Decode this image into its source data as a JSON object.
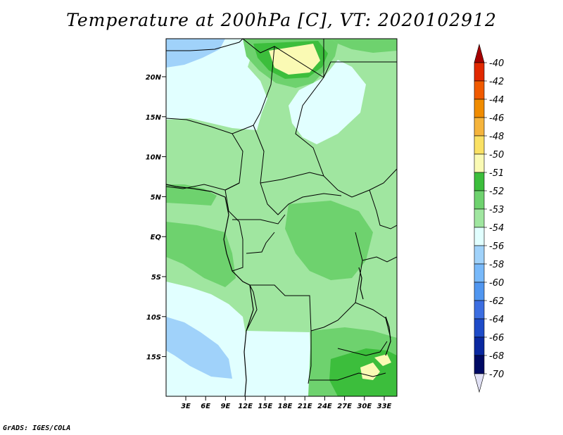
{
  "title": "Temperature at 200hPa [C], VT: 2020102912",
  "credit": "GrADS: IGES/COLA",
  "map": {
    "lat_ticks": [
      "20N",
      "15N",
      "10N",
      "5N",
      "EQ",
      "5S",
      "10S",
      "15S"
    ],
    "lon_ticks": [
      "3E",
      "6E",
      "9E",
      "12E",
      "15E",
      "18E",
      "21E",
      "24E",
      "27E",
      "30E",
      "33E"
    ]
  },
  "colorbar": {
    "labels": [
      "-40",
      "-42",
      "-44",
      "-46",
      "-48",
      "-50",
      "-51",
      "-52",
      "-53",
      "-54",
      "-56",
      "-58",
      "-60",
      "-62",
      "-64",
      "-66",
      "-68",
      "-70"
    ],
    "colors": [
      "#a50000",
      "#e12800",
      "#f05a00",
      "#f08c00",
      "#f5b43c",
      "#fae164",
      "#fafab4",
      "#3cbe3c",
      "#6ed26e",
      "#a0e6a0",
      "#e1ffff",
      "#a0d2fa",
      "#78b9fa",
      "#5096f0",
      "#3c6ee1",
      "#1e4bc8",
      "#0a28a0",
      "#000a64",
      "#e1e1f5"
    ]
  },
  "field_colors": {
    "very_light_blue": "#e1ffff",
    "light_blue": "#a0d2fa",
    "pale_green": "#a0e6a0",
    "green": "#6ed26e",
    "dark_green": "#3cbe3c",
    "pale_yellow": "#fafab4"
  }
}
